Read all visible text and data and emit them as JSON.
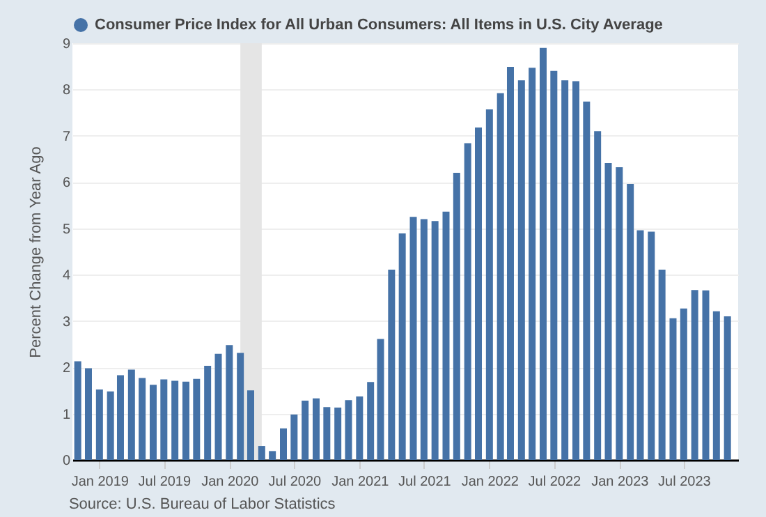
{
  "chart_data": {
    "type": "bar",
    "ylabel": "Percent Change from Year Ago",
    "annotations": [
      "Source: U.S. Bureau of Labor Statistics"
    ],
    "x": [
      "2018-11",
      "2018-12",
      "2019-01",
      "2019-02",
      "2019-03",
      "2019-04",
      "2019-05",
      "2019-06",
      "2019-07",
      "2019-08",
      "2019-09",
      "2019-10",
      "2019-11",
      "2019-12",
      "2020-01",
      "2020-02",
      "2020-03",
      "2020-04",
      "2020-05",
      "2020-06",
      "2020-07",
      "2020-08",
      "2020-09",
      "2020-10",
      "2020-11",
      "2020-12",
      "2021-01",
      "2021-02",
      "2021-03",
      "2021-04",
      "2021-05",
      "2021-06",
      "2021-07",
      "2021-08",
      "2021-09",
      "2021-10",
      "2021-11",
      "2021-12",
      "2022-01",
      "2022-02",
      "2022-03",
      "2022-04",
      "2022-05",
      "2022-06",
      "2022-07",
      "2022-08",
      "2022-09",
      "2022-10",
      "2022-11",
      "2022-12",
      "2023-01",
      "2023-02",
      "2023-03",
      "2023-04",
      "2023-05",
      "2023-06",
      "2023-07",
      "2023-08",
      "2023-09",
      "2023-10",
      "2023-11"
    ],
    "series": [
      {
        "name": "Consumer Price Index for All Urban Consumers: All Items in U.S. City Average",
        "color": "#4572a7",
        "values": [
          2.13,
          1.98,
          1.52,
          1.48,
          1.83,
          1.95,
          1.77,
          1.62,
          1.74,
          1.71,
          1.69,
          1.75,
          2.03,
          2.29,
          2.48,
          2.31,
          1.5,
          0.3,
          0.19,
          0.68,
          0.98,
          1.28,
          1.33,
          1.14,
          1.13,
          1.29,
          1.37,
          1.68,
          2.61,
          4.11,
          4.89,
          5.25,
          5.2,
          5.16,
          5.36,
          6.2,
          6.84,
          7.18,
          7.57,
          7.92,
          8.49,
          8.2,
          8.47,
          8.9,
          8.4,
          8.2,
          8.18,
          7.74,
          7.1,
          6.41,
          6.32,
          5.96,
          4.96,
          4.93,
          4.11,
          3.06,
          3.27,
          3.67,
          3.66,
          3.21,
          3.1
        ]
      }
    ],
    "bands": [
      {
        "axis": "x",
        "from": "2020-02",
        "to": "2020-04",
        "color": "#e5e5e5"
      }
    ],
    "xlim": [
      "2018-10-17",
      "2023-12-01"
    ],
    "xticks": [
      {
        "value": "2019-01",
        "label": "Jan 2019"
      },
      {
        "value": "2019-07",
        "label": "Jul 2019"
      },
      {
        "value": "2020-01",
        "label": "Jan 2020"
      },
      {
        "value": "2020-07",
        "label": "Jul 2020"
      },
      {
        "value": "2021-01",
        "label": "Jan 2021"
      },
      {
        "value": "2021-07",
        "label": "Jul 2021"
      },
      {
        "value": "2022-01",
        "label": "Jan 2022"
      },
      {
        "value": "2022-07",
        "label": "Jul 2022"
      },
      {
        "value": "2023-01",
        "label": "Jan 2023"
      },
      {
        "value": "2023-07",
        "label": "Jul 2023"
      }
    ],
    "ylim": [
      0,
      9
    ],
    "yticks": [
      0,
      1,
      2,
      3,
      4,
      5,
      6,
      7,
      8,
      9
    ],
    "grid": "y",
    "legend": "top left"
  }
}
